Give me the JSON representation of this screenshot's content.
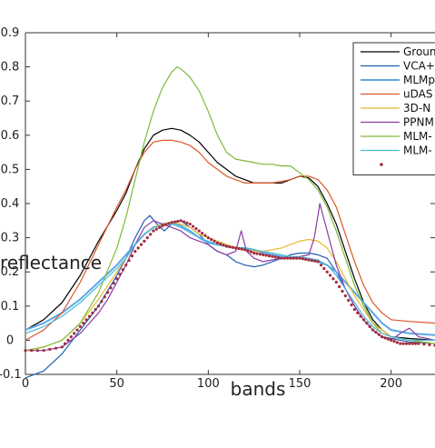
{
  "chart_data": {
    "type": "line",
    "xlabel": "bands",
    "ylabel": "reflectance",
    "xlim": [
      0,
      224
    ],
    "ylim": [
      -0.1,
      0.9
    ],
    "xticks": [
      0,
      50,
      100,
      150,
      200
    ],
    "yticks": [
      -0.1,
      0,
      0.1,
      0.2,
      0.3,
      0.4,
      0.5,
      0.6,
      0.7,
      0.8,
      0.9
    ],
    "xtick_labels": [
      "0",
      "50",
      "100",
      "150",
      "200"
    ],
    "ytick_labels": [
      "-0.1",
      "0",
      "0.1",
      "0.2",
      "0.3",
      "0.4",
      "0.5",
      "0.6",
      "0.7",
      "0.8",
      "0.9"
    ],
    "grid": false,
    "legend_position": "top-right",
    "series": [
      {
        "name": "Groun",
        "color": "#000000",
        "style": "line",
        "x": [
          0,
          10,
          20,
          30,
          40,
          50,
          55,
          60,
          65,
          70,
          75,
          80,
          85,
          90,
          95,
          100,
          105,
          110,
          115,
          120,
          125,
          130,
          135,
          140,
          145,
          150,
          155,
          160,
          165,
          170,
          175,
          180,
          185,
          190,
          195,
          200,
          210,
          224
        ],
        "y": [
          0.03,
          0.06,
          0.11,
          0.19,
          0.29,
          0.38,
          0.43,
          0.5,
          0.56,
          0.6,
          0.615,
          0.62,
          0.615,
          0.6,
          0.58,
          0.55,
          0.52,
          0.5,
          0.48,
          0.47,
          0.46,
          0.46,
          0.46,
          0.46,
          0.47,
          0.48,
          0.475,
          0.45,
          0.4,
          0.34,
          0.26,
          0.18,
          0.11,
          0.06,
          0.03,
          0.01,
          0.005,
          0.0
        ]
      },
      {
        "name": "VCA+",
        "color": "#1f5fb0",
        "style": "line",
        "x": [
          0,
          10,
          20,
          30,
          40,
          50,
          55,
          60,
          65,
          68,
          72,
          76,
          80,
          85,
          90,
          95,
          100,
          105,
          110,
          115,
          120,
          125,
          130,
          135,
          140,
          145,
          150,
          155,
          160,
          165,
          170,
          175,
          180,
          185,
          190,
          195,
          200,
          210,
          224
        ],
        "y": [
          -0.11,
          -0.09,
          -0.04,
          0.03,
          0.1,
          0.19,
          0.24,
          0.3,
          0.35,
          0.365,
          0.34,
          0.32,
          0.34,
          0.35,
          0.33,
          0.31,
          0.28,
          0.26,
          0.25,
          0.23,
          0.22,
          0.215,
          0.22,
          0.23,
          0.24,
          0.25,
          0.255,
          0.255,
          0.25,
          0.24,
          0.2,
          0.15,
          0.1,
          0.06,
          0.03,
          0.01,
          0.005,
          -0.005,
          -0.01
        ]
      },
      {
        "name": "MLMp",
        "color": "#5aa8e6",
        "style": "line",
        "x": [
          0,
          10,
          20,
          30,
          40,
          50,
          55,
          60,
          65,
          70,
          75,
          80,
          85,
          90,
          95,
          100,
          105,
          110,
          115,
          120,
          125,
          130,
          135,
          140,
          145,
          150,
          155,
          160,
          165,
          170,
          175,
          180,
          185,
          190,
          195,
          200,
          210,
          224
        ],
        "y": [
          0.03,
          0.05,
          0.08,
          0.12,
          0.17,
          0.22,
          0.25,
          0.28,
          0.31,
          0.33,
          0.34,
          0.345,
          0.335,
          0.32,
          0.3,
          0.285,
          0.28,
          0.275,
          0.27,
          0.27,
          0.265,
          0.255,
          0.25,
          0.245,
          0.24,
          0.24,
          0.235,
          0.23,
          0.22,
          0.2,
          0.17,
          0.14,
          0.11,
          0.08,
          0.05,
          0.03,
          0.02,
          0.015
        ]
      },
      {
        "name": "uDAS",
        "color": "#d9572a",
        "style": "line",
        "x": [
          0,
          10,
          20,
          30,
          40,
          50,
          55,
          60,
          65,
          70,
          75,
          80,
          85,
          90,
          95,
          100,
          105,
          110,
          115,
          120,
          125,
          130,
          135,
          140,
          145,
          150,
          155,
          160,
          165,
          170,
          175,
          180,
          185,
          190,
          195,
          200,
          210,
          224
        ],
        "y": [
          0.0,
          0.03,
          0.08,
          0.17,
          0.28,
          0.39,
          0.44,
          0.5,
          0.55,
          0.58,
          0.585,
          0.585,
          0.58,
          0.57,
          0.55,
          0.52,
          0.5,
          0.48,
          0.47,
          0.46,
          0.46,
          0.46,
          0.46,
          0.465,
          0.47,
          0.48,
          0.48,
          0.47,
          0.44,
          0.39,
          0.31,
          0.23,
          0.16,
          0.11,
          0.08,
          0.06,
          0.055,
          0.05
        ]
      },
      {
        "name": "3D-N",
        "color": "#e8b830",
        "style": "line",
        "x": [
          0,
          10,
          20,
          30,
          40,
          50,
          55,
          60,
          65,
          70,
          75,
          80,
          85,
          90,
          95,
          100,
          105,
          110,
          115,
          120,
          125,
          130,
          135,
          140,
          145,
          150,
          155,
          160,
          165,
          170,
          175,
          180,
          185,
          190,
          195,
          200,
          210,
          224
        ],
        "y": [
          -0.03,
          -0.02,
          0.0,
          0.05,
          0.12,
          0.2,
          0.24,
          0.28,
          0.31,
          0.33,
          0.34,
          0.345,
          0.34,
          0.33,
          0.31,
          0.3,
          0.29,
          0.28,
          0.27,
          0.265,
          0.26,
          0.26,
          0.265,
          0.27,
          0.28,
          0.29,
          0.295,
          0.29,
          0.27,
          0.23,
          0.18,
          0.13,
          0.09,
          0.05,
          0.03,
          0.01,
          0.0,
          -0.01
        ]
      },
      {
        "name": "PPNM",
        "color": "#8a3aa8",
        "style": "line",
        "x": [
          0,
          10,
          20,
          25,
          30,
          35,
          40,
          45,
          50,
          55,
          60,
          65,
          70,
          75,
          80,
          85,
          90,
          95,
          100,
          105,
          110,
          115,
          118,
          121,
          125,
          130,
          135,
          140,
          145,
          150,
          155,
          158,
          161,
          164,
          167,
          170,
          175,
          180,
          185,
          190,
          195,
          200,
          205,
          210,
          215,
          224
        ],
        "y": [
          -0.03,
          -0.03,
          -0.02,
          0.0,
          0.02,
          0.05,
          0.08,
          0.12,
          0.17,
          0.22,
          0.28,
          0.33,
          0.35,
          0.34,
          0.33,
          0.32,
          0.3,
          0.29,
          0.28,
          0.26,
          0.25,
          0.26,
          0.32,
          0.26,
          0.24,
          0.23,
          0.235,
          0.24,
          0.24,
          0.245,
          0.25,
          0.3,
          0.4,
          0.34,
          0.28,
          0.22,
          0.15,
          0.1,
          0.06,
          0.03,
          0.01,
          0.0,
          0.02,
          0.035,
          0.01,
          0.0
        ]
      },
      {
        "name": "MLM-",
        "color": "#7fba3a",
        "style": "line",
        "x": [
          0,
          10,
          20,
          30,
          40,
          50,
          55,
          60,
          65,
          70,
          75,
          80,
          83,
          86,
          90,
          95,
          100,
          105,
          110,
          115,
          120,
          125,
          130,
          135,
          140,
          145,
          150,
          155,
          160,
          165,
          170,
          175,
          180,
          185,
          190,
          195,
          200,
          210,
          224
        ],
        "y": [
          -0.03,
          -0.02,
          0.0,
          0.05,
          0.14,
          0.27,
          0.36,
          0.47,
          0.58,
          0.67,
          0.74,
          0.785,
          0.8,
          0.79,
          0.77,
          0.73,
          0.67,
          0.6,
          0.55,
          0.53,
          0.525,
          0.52,
          0.515,
          0.515,
          0.51,
          0.51,
          0.49,
          0.47,
          0.44,
          0.39,
          0.32,
          0.24,
          0.16,
          0.1,
          0.05,
          0.02,
          0.01,
          0.0,
          -0.01
        ]
      },
      {
        "name": "MLM-",
        "color": "#4fb8d8",
        "style": "line",
        "x": [
          0,
          10,
          20,
          30,
          40,
          50,
          55,
          60,
          65,
          70,
          75,
          80,
          85,
          90,
          95,
          100,
          105,
          110,
          115,
          120,
          125,
          130,
          135,
          140,
          145,
          150,
          155,
          160,
          165,
          170,
          175,
          180,
          185,
          190,
          195,
          200,
          210,
          224
        ],
        "y": [
          0.02,
          0.04,
          0.07,
          0.11,
          0.16,
          0.21,
          0.24,
          0.28,
          0.31,
          0.33,
          0.335,
          0.34,
          0.33,
          0.315,
          0.3,
          0.29,
          0.28,
          0.275,
          0.27,
          0.27,
          0.265,
          0.26,
          0.255,
          0.25,
          0.245,
          0.245,
          0.24,
          0.235,
          0.22,
          0.19,
          0.15,
          0.11,
          0.07,
          0.04,
          0.02,
          0.01,
          0.0,
          0.0
        ]
      },
      {
        "name": "",
        "color": "#a52a3a",
        "style": "markers",
        "x": [
          0,
          10,
          20,
          25,
          30,
          35,
          40,
          45,
          50,
          55,
          60,
          65,
          70,
          75,
          80,
          85,
          90,
          95,
          100,
          105,
          110,
          115,
          120,
          125,
          130,
          135,
          140,
          145,
          150,
          155,
          160,
          165,
          170,
          175,
          180,
          185,
          190,
          195,
          200,
          205,
          210,
          215,
          224
        ],
        "y": [
          -0.03,
          -0.03,
          -0.02,
          0.01,
          0.04,
          0.07,
          0.1,
          0.14,
          0.18,
          0.22,
          0.26,
          0.29,
          0.32,
          0.335,
          0.345,
          0.35,
          0.34,
          0.32,
          0.3,
          0.285,
          0.275,
          0.27,
          0.265,
          0.255,
          0.25,
          0.245,
          0.24,
          0.24,
          0.24,
          0.235,
          0.23,
          0.2,
          0.17,
          0.13,
          0.09,
          0.06,
          0.03,
          0.01,
          0.0,
          -0.01,
          -0.01,
          -0.01,
          -0.015
        ]
      }
    ]
  }
}
